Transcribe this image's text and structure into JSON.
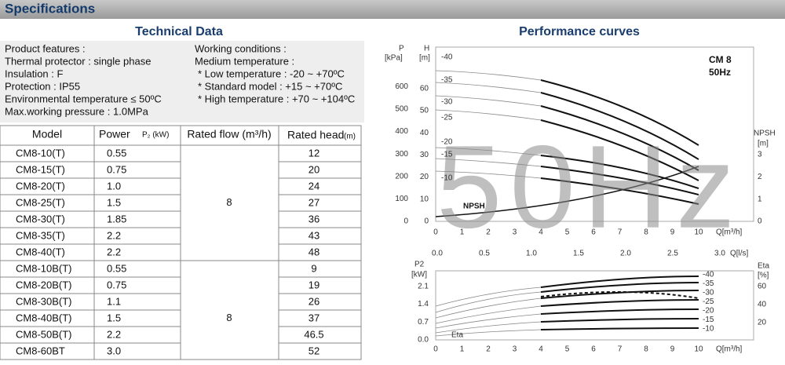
{
  "header": {
    "title": "Specifications"
  },
  "technical": {
    "title": "Technical Data",
    "features": [
      "Product features :",
      "Thermal protector : single phase",
      "Insulation : F",
      "Protection : IP55",
      "Environmental temperature ≤ 50ºC",
      "Max.working pressure : 1.0MPa"
    ],
    "conditions": [
      "Working conditions :",
      "Medium temperature :",
      "* Low temperature : -20 ~ +70ºC",
      "* Standard model  : +15 ~ +70ºC",
      "* High temperature : +70 ~ +104ºC"
    ]
  },
  "table": {
    "columns": [
      "Model",
      "Power",
      "P₂ (kW)",
      "Rated flow (m³/h)",
      "Rated head",
      "(m)"
    ],
    "rows": [
      [
        "CM8-10(T)",
        "0.55",
        "12"
      ],
      [
        "CM8-15(T)",
        "0.75",
        "20"
      ],
      [
        "CM8-20(T)",
        "1.0",
        "24"
      ],
      [
        "CM8-25(T)",
        "1.5",
        "27"
      ],
      [
        "CM8-30(T)",
        "1.85",
        "36"
      ],
      [
        "CM8-35(T)",
        "2.2",
        "43"
      ],
      [
        "CM8-40(T)",
        "2.2",
        "48"
      ],
      [
        "CM8-10B(T)",
        "0.55",
        "9"
      ],
      [
        "CM8-20B(T)",
        "0.75",
        "19"
      ],
      [
        "CM8-30B(T)",
        "1.1",
        "26"
      ],
      [
        "CM8-40B(T)",
        "1.5",
        "37"
      ],
      [
        "CM8-50B(T)",
        "2.2",
        "46.5"
      ],
      [
        "CM8-60BT",
        "3.0",
        "52"
      ]
    ],
    "flow": [
      "8",
      "8"
    ]
  },
  "performance": {
    "title": "Performance curves",
    "watermark": "50Hz",
    "upper": {
      "p_axis": "P",
      "p_unit": "[kPa]",
      "h_axis": "H",
      "h_unit": "[m]",
      "model": "CM 8",
      "freq": "50Hz",
      "npsh_axis": "NPSH",
      "npsh_unit": "[m]",
      "npsh_label": "NPSH",
      "p_ticks": [
        "0",
        "100",
        "200",
        "300",
        "400",
        "500",
        "600"
      ],
      "h_ticks": [
        "0",
        "10",
        "20",
        "30",
        "40",
        "50",
        "60"
      ],
      "npsh_ticks": [
        "0",
        "1",
        "2",
        "3"
      ],
      "q_ticks": [
        "0",
        "1",
        "2",
        "3",
        "4",
        "5",
        "6",
        "7",
        "8",
        "9",
        "10"
      ],
      "q_label": "Q[m³/h]",
      "qls_ticks": [
        "0.0",
        "0.5",
        "1.0",
        "1.5",
        "2.0",
        "2.5",
        "3.0"
      ],
      "qls_label": "Q[l/s]",
      "curve_labels": [
        "-40",
        "-35",
        "-30",
        "-25",
        "-20",
        "-15",
        "-10"
      ]
    },
    "lower": {
      "p2_axis": "P2",
      "p2_unit": "[kW]",
      "p2_ticks": [
        "0.0",
        "0.7",
        "1.4",
        "2.1"
      ],
      "eta_axis": "Eta",
      "eta_unit": "[%]",
      "eta_ticks": [
        "20",
        "40",
        "60"
      ],
      "eta_curve": "Eta",
      "q_ticks": [
        "0",
        "1",
        "2",
        "3",
        "4",
        "5",
        "6",
        "7",
        "8",
        "9",
        "10"
      ],
      "q_label": "Q[m³/h]",
      "curve_labels": [
        "-40",
        "-35",
        "-30",
        "-25",
        "-20",
        "-15",
        "-10"
      ]
    }
  }
}
